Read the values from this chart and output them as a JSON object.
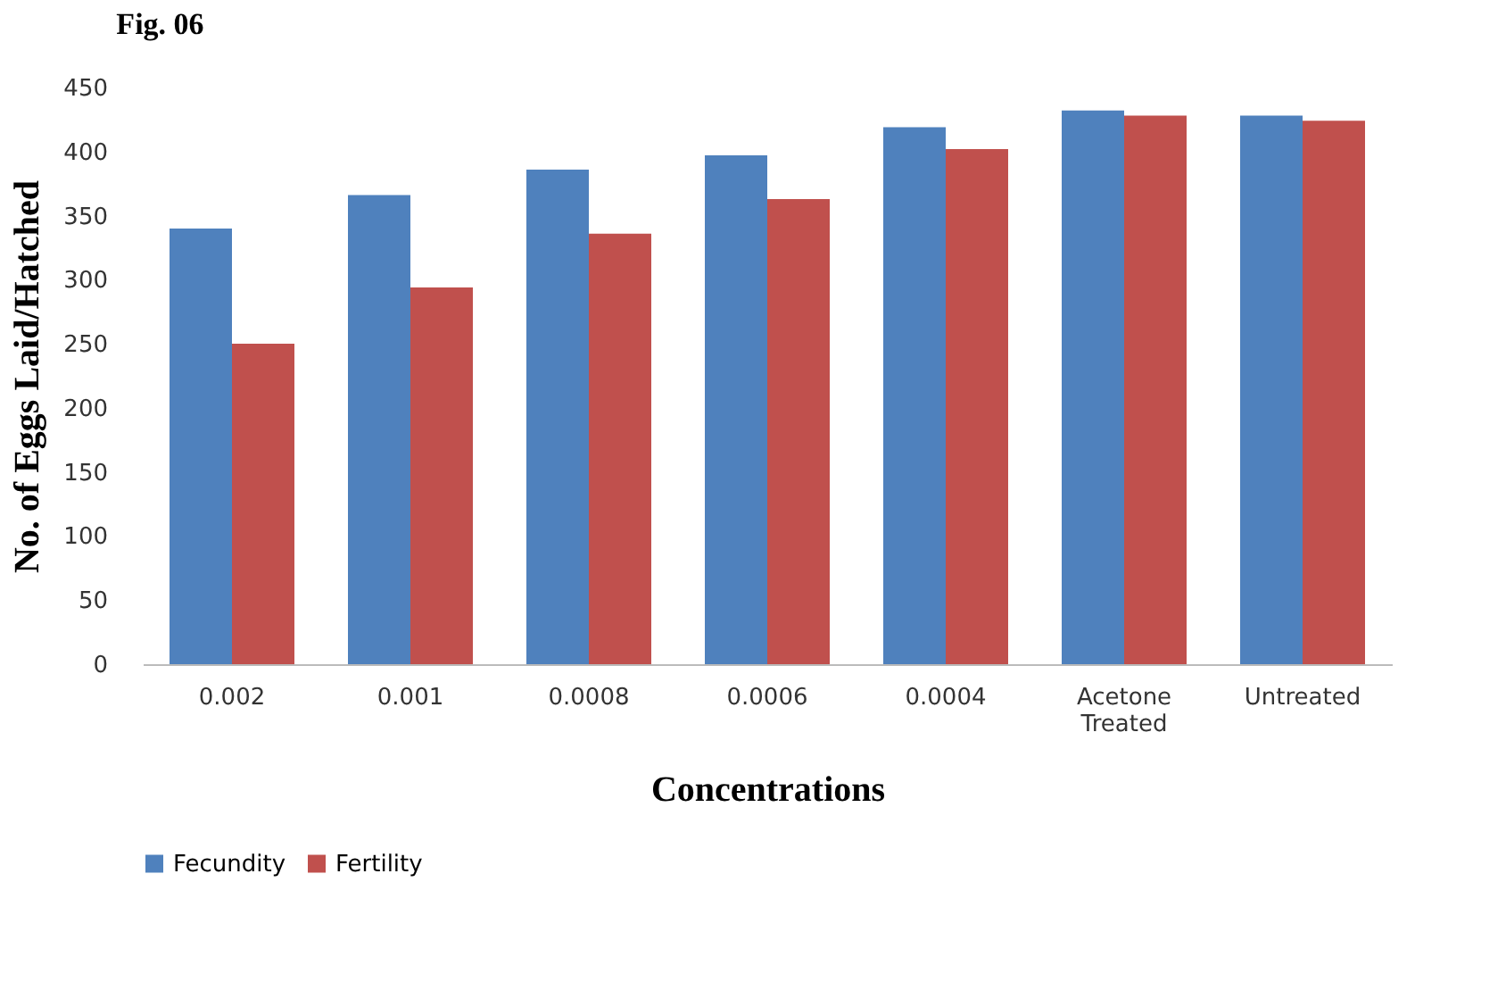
{
  "chart_data": {
    "type": "bar",
    "title": "Fig. 06",
    "xlabel": "Concentrations",
    "ylabel": "No. of Eggs Laid/Hatched",
    "categories": [
      "0.002",
      "0.001",
      "0.0008",
      "0.0006",
      "0.0004",
      "Acetone Treated",
      "Untreated"
    ],
    "series": [
      {
        "name": "Fecundity",
        "color": "#4f81bd",
        "values": [
          340,
          366,
          386,
          397,
          419,
          432,
          428
        ]
      },
      {
        "name": "Fertility",
        "color": "#c0504d",
        "values": [
          250,
          294,
          336,
          363,
          402,
          428,
          424
        ]
      }
    ],
    "ylim": [
      0,
      450
    ],
    "yticks": [
      0,
      50,
      100,
      150,
      200,
      250,
      300,
      350,
      400,
      450
    ],
    "grid": false,
    "legend": "bottom"
  }
}
